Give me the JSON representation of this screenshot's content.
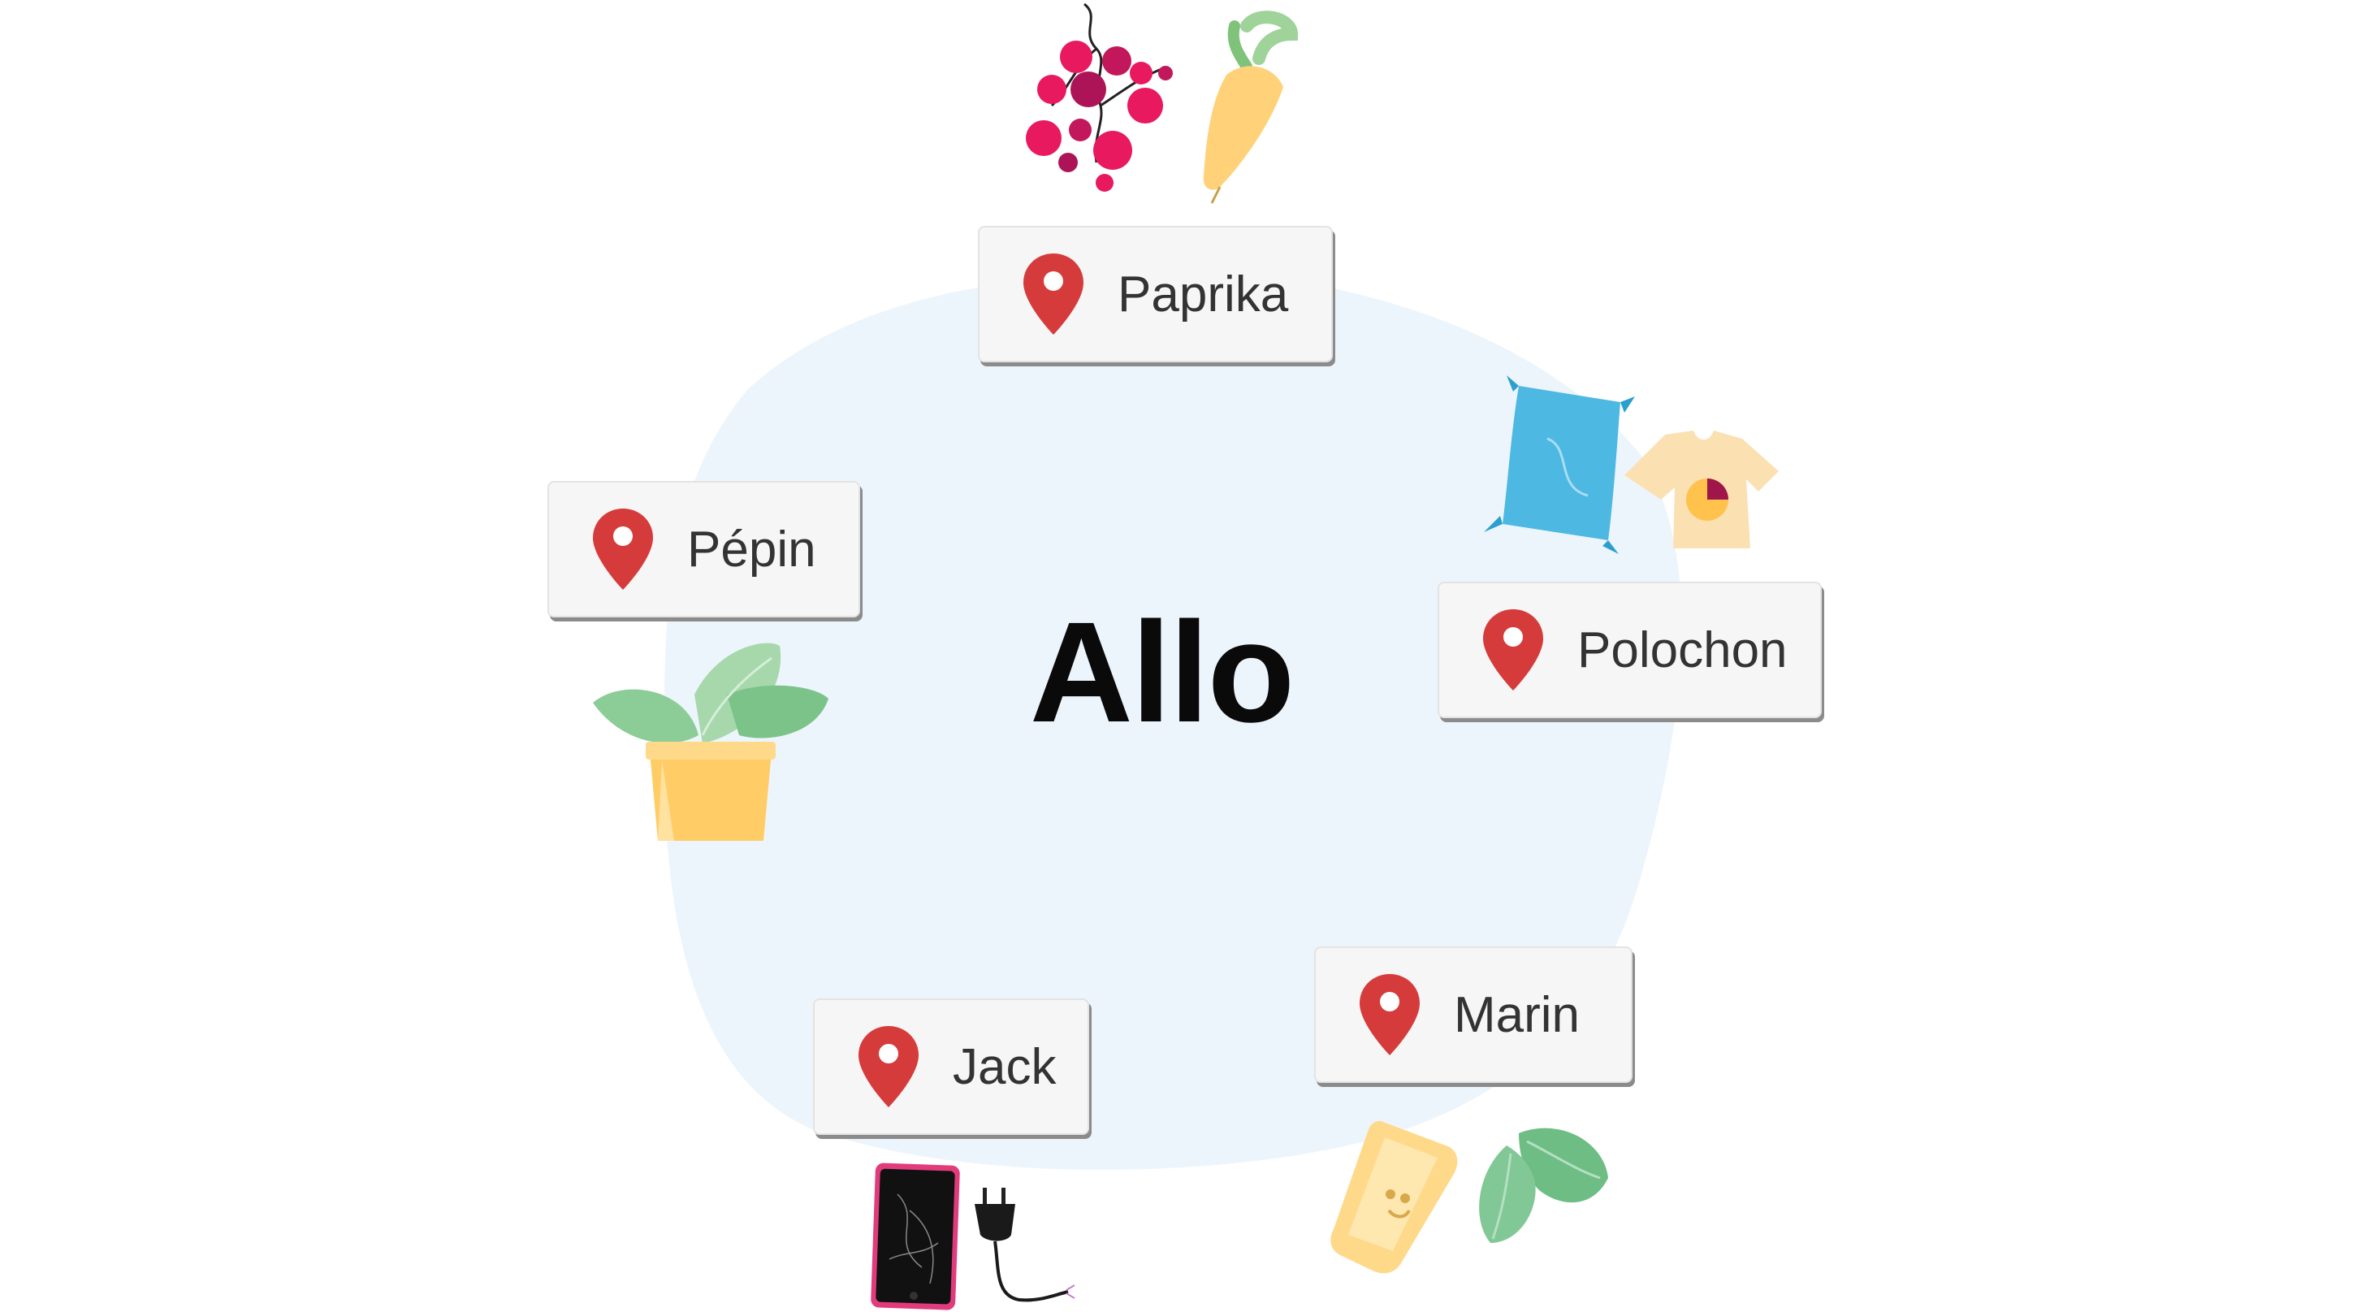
{
  "title": "Allo",
  "colors": {
    "blob": "#edf5fc",
    "pin": "#d63b3b",
    "card": "#f6f6f6"
  },
  "nodes": [
    {
      "id": "paprika",
      "label": "Paprika",
      "icon": "map-pin-icon",
      "illustration": [
        "berries-icon",
        "carrot-icon"
      ]
    },
    {
      "id": "polochon",
      "label": "Polochon",
      "icon": "map-pin-icon",
      "illustration": [
        "pillow-icon",
        "tshirt-icon"
      ]
    },
    {
      "id": "marin",
      "label": "Marin",
      "icon": "map-pin-icon",
      "illustration": [
        "soap-icon",
        "leaves-icon"
      ]
    },
    {
      "id": "jack",
      "label": "Jack",
      "icon": "map-pin-icon",
      "illustration": [
        "smartphone-icon",
        "plug-icon"
      ]
    },
    {
      "id": "pepin",
      "label": "Pépin",
      "icon": "map-pin-icon",
      "illustration": [
        "potted-plant-icon"
      ]
    }
  ]
}
